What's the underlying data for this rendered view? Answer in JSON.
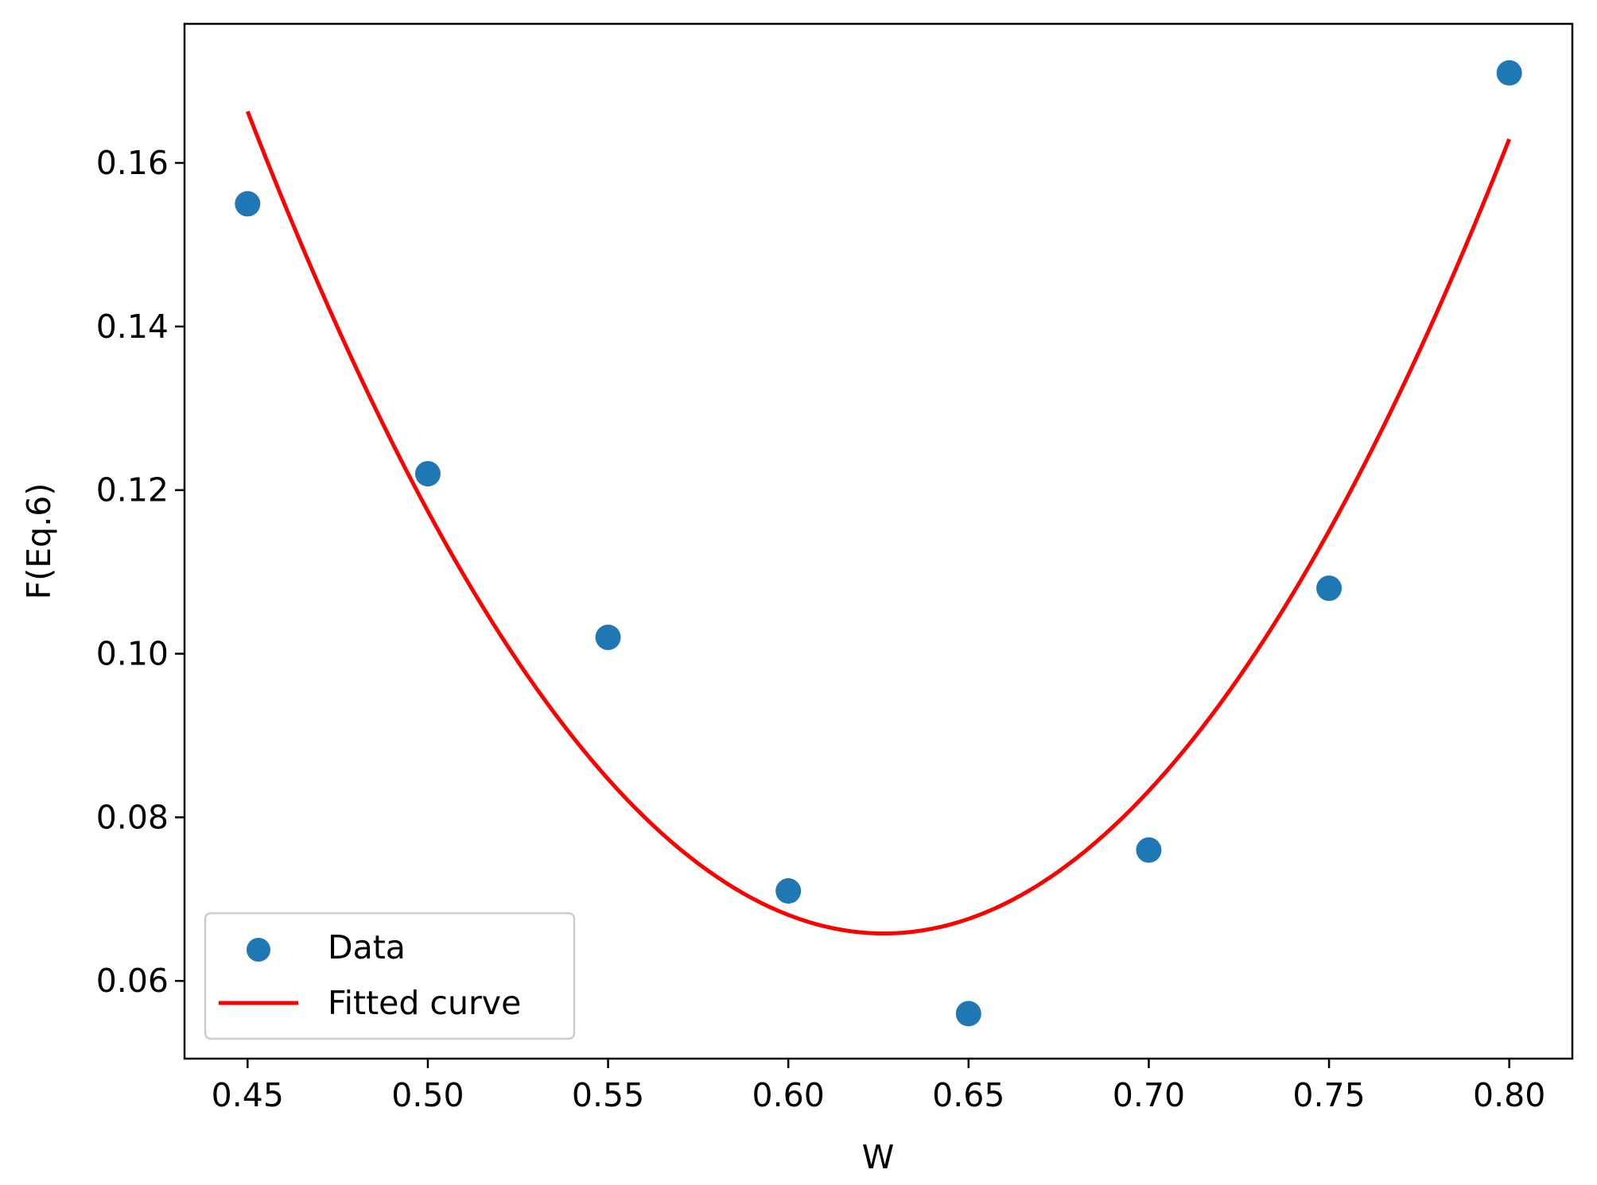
{
  "chart_data": {
    "type": "scatter",
    "xlabel": "W",
    "ylabel": "F(Eq.6)",
    "xlim": [
      0.4325,
      0.8175
    ],
    "ylim": [
      0.0505,
      0.177
    ],
    "x_ticks": [
      "0.45",
      "0.50",
      "0.55",
      "0.60",
      "0.65",
      "0.70",
      "0.75",
      "0.80"
    ],
    "y_ticks": [
      "0.06",
      "0.08",
      "0.10",
      "0.12",
      "0.14",
      "0.16"
    ],
    "grid": false,
    "legend_position": "lower-left",
    "series": [
      {
        "name": "Data",
        "kind": "scatter",
        "color": "#1f77b4",
        "x": [
          0.45,
          0.5,
          0.55,
          0.6,
          0.65,
          0.7,
          0.75,
          0.8
        ],
        "y": [
          0.155,
          0.122,
          0.102,
          0.071,
          0.056,
          0.076,
          0.108,
          0.171
        ]
      },
      {
        "name": "Fitted curve",
        "kind": "line",
        "color": "#ff0000",
        "x_range": [
          0.45,
          0.8
        ],
        "quadratic_fit": {
          "vertex_x": 0.6265,
          "vertex_y": 0.0658,
          "curvature": 3.226
        }
      }
    ]
  }
}
